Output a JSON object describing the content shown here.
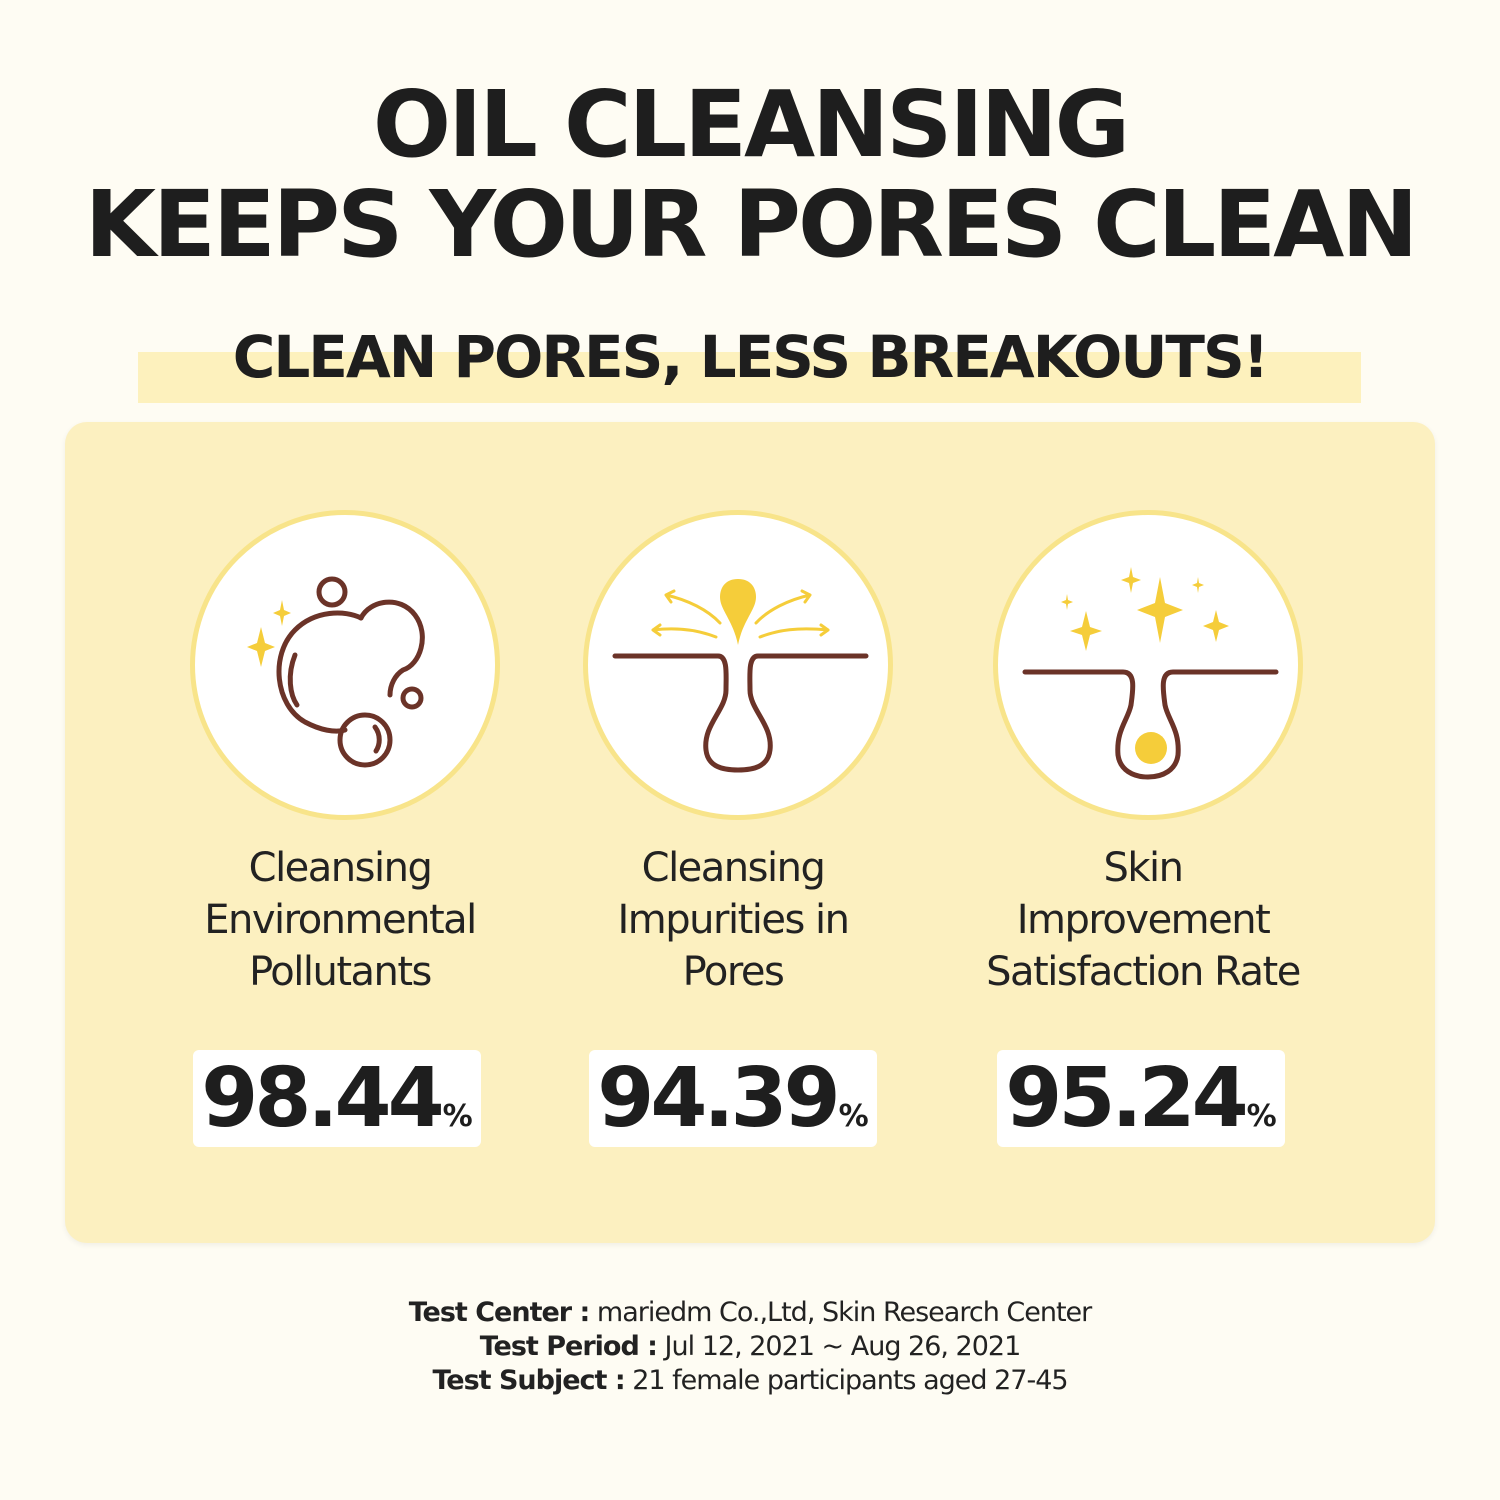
{
  "headline": {
    "line1": "OIL CLEANSING",
    "line2": "KEEPS YOUR PORES CLEAN"
  },
  "subheadline": "CLEAN PORES, LESS BREAKOUTS!",
  "colors": {
    "background": "#fefcf3",
    "panel": "#fcf0c0",
    "highlight": "#fdf1bd",
    "icon_brown": "#6b3328",
    "icon_yellow": "#f5cd3a",
    "circle_border": "#f8e48a"
  },
  "stats": [
    {
      "icon": "bubbles-sparkle-icon",
      "label_lines": [
        "Cleansing",
        "Environmental",
        "Pollutants"
      ],
      "value": "98.44",
      "unit": "%"
    },
    {
      "icon": "pore-cleansing-icon",
      "label_lines": [
        "Cleansing",
        "Impurities in",
        "Pores"
      ],
      "value": "94.39",
      "unit": "%"
    },
    {
      "icon": "clean-pore-sparkle-icon",
      "label_lines": [
        "Skin",
        "Improvement",
        "Satisfaction Rate"
      ],
      "value": "95.24",
      "unit": "%"
    }
  ],
  "footer": [
    {
      "label": "Test Center :",
      "value": " mariedm Co.,Ltd, Skin Research Center"
    },
    {
      "label": "Test Period :",
      "value": " Jul 12, 2021 ~ Aug 26, 2021"
    },
    {
      "label": "Test Subject :",
      "value": " 21 female participants aged 27-45"
    }
  ]
}
